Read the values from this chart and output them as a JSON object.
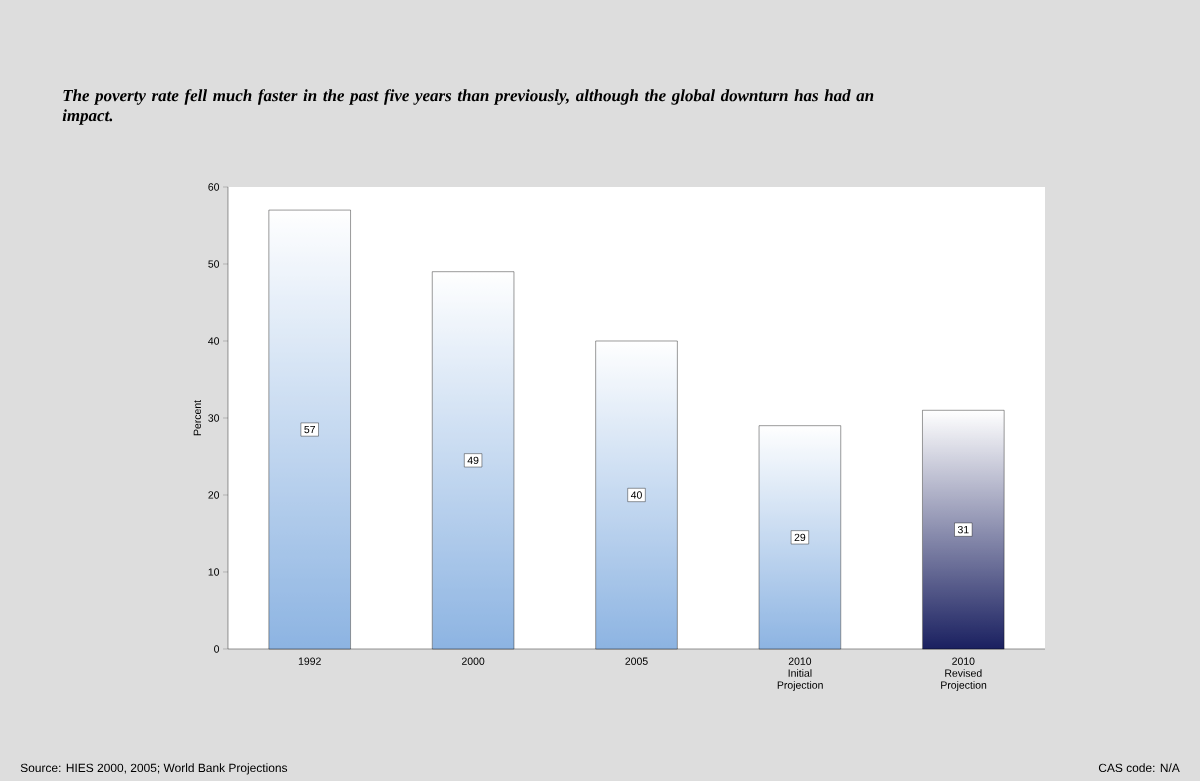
{
  "chart_data": {
    "type": "bar",
    "title": "The poverty rate fell much faster in the past five years than previously, although the global downturn has had an impact.",
    "ylabel": "Percent",
    "categories": [
      "1992",
      "2000",
      "2005",
      "2010 Initial Projection",
      "2010 Revised Projection"
    ],
    "values": [
      57,
      49,
      40,
      29,
      31
    ],
    "colors": [
      "#8db4e2",
      "#8db4e2",
      "#8db4e2",
      "#8db4e2",
      "#1a2060"
    ],
    "ylim": [
      0,
      60
    ],
    "yticks": [
      0,
      10,
      20,
      30,
      40,
      50,
      60
    ],
    "data_labels": true,
    "grid": false,
    "annotations": [
      "Source: HIES 2000, 2005; World Bank Projections",
      "CAS code: N/A"
    ]
  }
}
